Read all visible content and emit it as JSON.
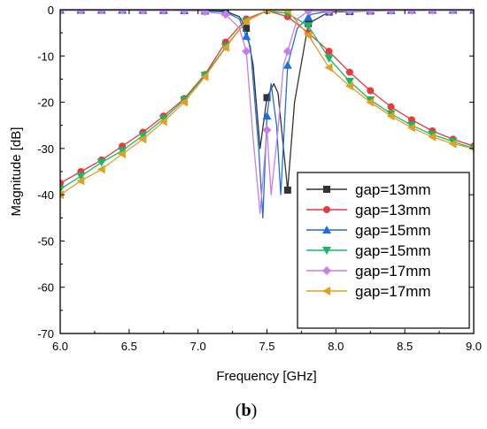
{
  "caption": {
    "open": "(",
    "letter": "b",
    "close": ")"
  },
  "chart_data": {
    "type": "line",
    "xlabel": "Frequency [GHz]",
    "ylabel": "Magnitude [dB]",
    "xlim": [
      6.0,
      9.0
    ],
    "ylim": [
      -70,
      0
    ],
    "xticks": [
      6.0,
      6.5,
      7.0,
      7.5,
      8.0,
      8.5,
      9.0
    ],
    "xtick_labels": [
      "6.0",
      "6.5",
      "7.0",
      "7.5",
      "8.0",
      "8.5",
      "9.0"
    ],
    "yticks": [
      0,
      -10,
      -20,
      -30,
      -40,
      -50,
      -60,
      -70
    ],
    "ytick_labels": [
      "0",
      "-10",
      "-20",
      "-30",
      "-40",
      "-50",
      "-60",
      "-70"
    ],
    "grid": false,
    "legend_position": "bottom-right",
    "series": [
      {
        "name": "gap=13mm",
        "color": "#333333",
        "marker": "square",
        "x": [
          6.0,
          6.5,
          7.0,
          7.2,
          7.3,
          7.35,
          7.4,
          7.45,
          7.5,
          7.55,
          7.58,
          7.62,
          7.65,
          7.7,
          7.8,
          7.95,
          8.5,
          9.0
        ],
        "y": [
          -0.1,
          -0.1,
          -0.15,
          -0.3,
          -1.5,
          -4,
          -12,
          -30,
          -19,
          -16,
          -18,
          -30,
          -39,
          -20,
          -3,
          -0.5,
          -0.1,
          -0.1
        ],
        "marker_x": [
          6.0,
          6.15,
          6.3,
          6.45,
          6.6,
          6.75,
          6.9,
          7.05,
          7.2,
          7.35,
          7.5,
          7.65,
          7.8,
          7.95,
          8.1,
          8.25,
          8.4,
          8.55,
          8.7,
          8.85,
          9.0
        ]
      },
      {
        "name": "gap=13mm",
        "color": "#e8393b",
        "marker": "circle",
        "x": [
          6.0,
          6.15,
          6.3,
          6.45,
          6.6,
          6.75,
          6.9,
          7.05,
          7.2,
          7.35,
          7.5,
          7.65,
          7.8,
          7.95,
          8.1,
          8.25,
          8.4,
          8.55,
          8.7,
          8.85,
          9.0
        ],
        "y": [
          -37.5,
          -35,
          -32.5,
          -29.5,
          -26.5,
          -23,
          -19.2,
          -14,
          -7,
          -2,
          -0.2,
          -1.5,
          -5,
          -9,
          -13.5,
          -17.5,
          -21,
          -23.8,
          -26.2,
          -28,
          -29.5
        ]
      },
      {
        "name": "gap=15mm",
        "color": "#1e6fdc",
        "marker": "triangle-up",
        "x": [
          6.0,
          6.5,
          7.0,
          7.2,
          7.3,
          7.38,
          7.44,
          7.47,
          7.5,
          7.53,
          7.57,
          7.6,
          7.65,
          7.72,
          7.82,
          7.95,
          8.5,
          9.0
        ],
        "y": [
          -0.1,
          -0.1,
          -0.2,
          -0.5,
          -2,
          -8,
          -30,
          -45,
          -23,
          -16,
          -25,
          -40,
          -12,
          -4,
          -1,
          -0.3,
          -0.1,
          -0.1
        ],
        "marker_x": [
          6.0,
          6.15,
          6.3,
          6.45,
          6.6,
          6.75,
          6.9,
          7.05,
          7.2,
          7.35,
          7.5,
          7.65,
          7.8,
          7.95,
          8.1,
          8.25,
          8.4,
          8.55,
          8.7,
          8.85,
          9.0
        ]
      },
      {
        "name": "gap=15mm",
        "color": "#18b86a",
        "marker": "triangle-down",
        "x": [
          6.0,
          6.15,
          6.3,
          6.45,
          6.6,
          6.75,
          6.9,
          7.05,
          7.2,
          7.35,
          7.5,
          7.65,
          7.8,
          7.95,
          8.1,
          8.25,
          8.4,
          8.55,
          8.7,
          8.85,
          9.0
        ],
        "y": [
          -38.8,
          -36,
          -33,
          -30.5,
          -27.2,
          -23.6,
          -19.5,
          -14.2,
          -8,
          -2.5,
          -0.2,
          -0.8,
          -3.5,
          -10.5,
          -15.5,
          -19.5,
          -22.5,
          -25,
          -27,
          -28.5,
          -30
        ]
      },
      {
        "name": "gap=17mm",
        "color": "#c77fe6",
        "marker": "diamond",
        "x": [
          6.0,
          6.5,
          7.0,
          7.2,
          7.3,
          7.35,
          7.4,
          7.45,
          7.5,
          7.53,
          7.58,
          7.62,
          7.67,
          7.72,
          7.8,
          9.0
        ],
        "y": [
          -0.1,
          -0.1,
          -0.2,
          -1,
          -4,
          -9,
          -28,
          -44,
          -26,
          -40,
          -26,
          -12,
          -7,
          -2,
          -0.3,
          -0.1
        ],
        "marker_x": [
          6.0,
          6.15,
          6.3,
          6.45,
          6.6,
          6.75,
          6.9,
          7.05,
          7.2,
          7.35,
          7.5,
          7.65,
          7.8,
          7.95,
          8.1,
          8.25,
          8.4,
          8.55,
          8.7,
          8.85,
          9.0
        ]
      },
      {
        "name": "gap=17mm",
        "color": "#e0a021",
        "marker": "triangle-left",
        "x": [
          6.0,
          6.15,
          6.3,
          6.45,
          6.6,
          6.75,
          6.9,
          7.05,
          7.2,
          7.35,
          7.5,
          7.65,
          7.8,
          7.95,
          8.1,
          8.25,
          8.4,
          8.55,
          8.7,
          8.85,
          9.0
        ],
        "y": [
          -40,
          -37,
          -34.5,
          -31.2,
          -28,
          -24.2,
          -20,
          -14.5,
          -8.2,
          -2.5,
          -0.1,
          -0.2,
          -5.5,
          -12.5,
          -16.5,
          -20,
          -23,
          -25.5,
          -27.5,
          -29,
          -30
        ]
      }
    ]
  }
}
